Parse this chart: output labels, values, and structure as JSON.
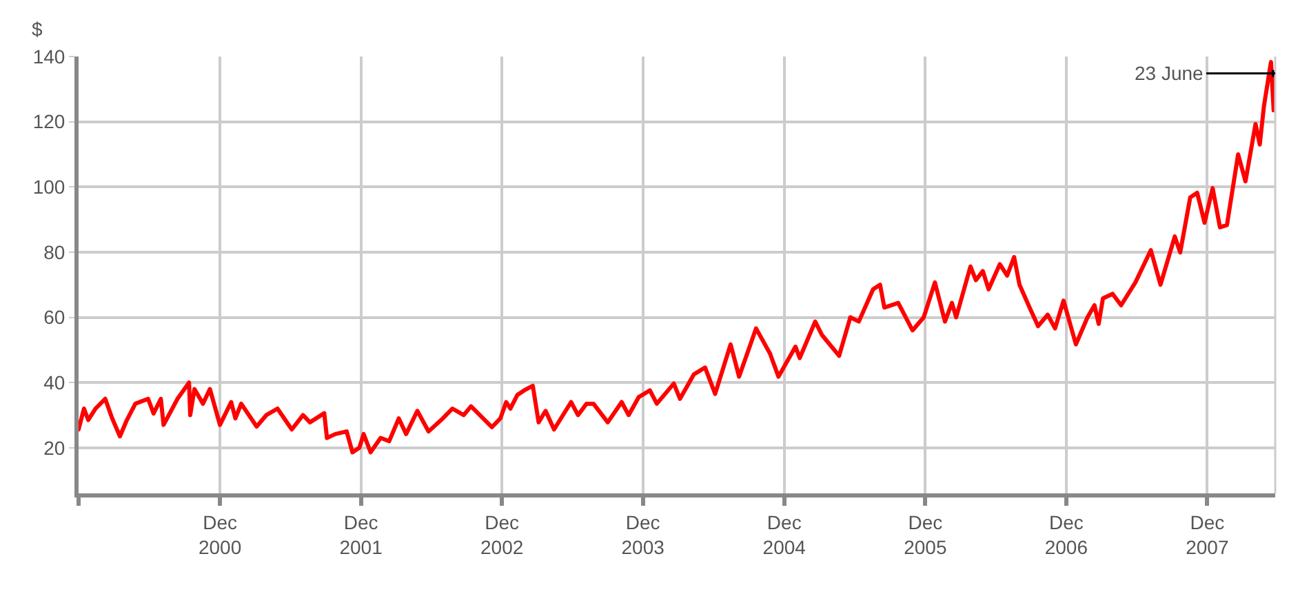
{
  "chart_data": {
    "type": "line",
    "ylabel": "$",
    "x": [
      "1999-12-03",
      "1999-12-17",
      "1999-12-28",
      "2000-01-16",
      "2000-02-10",
      "2000-02-28",
      "2000-03-19",
      "2000-04-06",
      "2000-04-28",
      "2000-05-31",
      "2000-06-14",
      "2000-07-03",
      "2000-07-10",
      "2000-08-15",
      "2000-09-14",
      "2000-09-17",
      "2000-09-28",
      "2000-10-20",
      "2000-11-07",
      "2000-12-03",
      "2001-01-01",
      "2001-01-12",
      "2001-01-27",
      "2001-03-08",
      "2001-04-02",
      "2001-05-01",
      "2001-06-07",
      "2001-07-06",
      "2001-07-24",
      "2001-08-30",
      "2001-09-06",
      "2001-09-28",
      "2001-10-27",
      "2001-11-11",
      "2001-11-29",
      "2001-12-10",
      "2001-12-28",
      "2002-01-23",
      "2002-02-14",
      "2002-03-11",
      "2002-03-30",
      "2002-04-28",
      "2002-05-27",
      "2002-07-03",
      "2002-07-28",
      "2002-08-26",
      "2002-09-14",
      "2002-11-07",
      "2002-11-29",
      "2002-12-14",
      "2002-12-25",
      "2003-01-12",
      "2003-01-30",
      "2003-02-21",
      "2003-03-08",
      "2003-03-26",
      "2003-04-17",
      "2003-05-31",
      "2003-06-18",
      "2003-07-10",
      "2003-07-28",
      "2003-09-03",
      "2003-10-09",
      "2003-10-27",
      "2003-11-22",
      "2003-12-21",
      "2004-01-08",
      "2004-02-21",
      "2004-03-08",
      "2004-04-13",
      "2004-05-12",
      "2004-06-07",
      "2004-07-17",
      "2004-08-08",
      "2004-09-21",
      "2004-10-27",
      "2004-11-18",
      "2005-01-01",
      "2005-01-12",
      "2005-02-21",
      "2005-03-11",
      "2005-04-24",
      "2005-05-23",
      "2005-06-14",
      "2005-07-21",
      "2005-08-08",
      "2005-08-19",
      "2005-09-24",
      "2005-10-31",
      "2005-11-29",
      "2005-12-28",
      "2006-01-23",
      "2006-02-10",
      "2006-02-21",
      "2006-03-30",
      "2006-04-13",
      "2006-05-01",
      "2006-05-16",
      "2006-06-14",
      "2006-07-03",
      "2006-07-21",
      "2006-08-04",
      "2006-08-30",
      "2006-09-21",
      "2006-10-16",
      "2006-11-04",
      "2006-11-26",
      "2006-12-28",
      "2007-01-27",
      "2007-02-14",
      "2007-02-25",
      "2007-03-08",
      "2007-04-02",
      "2007-04-24",
      "2007-05-31",
      "2007-07-10",
      "2007-08-04",
      "2007-09-10",
      "2007-09-24",
      "2007-10-20",
      "2007-11-07",
      "2007-11-26",
      "2007-12-17",
      "2008-01-05",
      "2008-01-23",
      "2008-02-21",
      "2008-03-11",
      "2008-04-06",
      "2008-04-17",
      "2008-04-28",
      "2008-05-16",
      "2008-05-23",
      "2008-05-27"
    ],
    "series": [
      {
        "color": "#ff0000",
        "values": [
          25.6,
          32,
          28.5,
          32,
          35,
          29,
          23.5,
          28.5,
          33.5,
          35,
          30.5,
          35,
          27,
          35,
          40,
          30,
          38,
          33.5,
          38,
          27,
          34,
          29,
          33.5,
          26.5,
          30,
          32,
          25.6,
          30,
          27.8,
          30.6,
          23,
          24.2,
          25,
          18.6,
          20,
          24.2,
          18.6,
          23,
          22,
          29,
          24.2,
          31.3,
          25,
          29,
          32,
          30,
          32.7,
          26.3,
          29,
          34,
          32,
          36.2,
          37.6,
          39,
          27.8,
          31.3,
          25.6,
          34,
          30,
          33.5,
          33.5,
          27.8,
          34,
          30,
          35.5,
          37.6,
          33.5,
          39.7,
          35,
          42.5,
          44.6,
          36.5,
          51.7,
          41.8,
          56.6,
          48.9,
          41.8,
          51,
          47.5,
          58.7,
          54.5,
          48.2,
          60,
          58.7,
          68.6,
          70,
          63,
          64.4,
          56,
          60,
          70.7,
          58.7,
          64.4,
          60,
          75.6,
          71.4,
          74.2,
          68.6,
          76.3,
          72.8,
          78.5,
          70,
          63,
          57.3,
          60.8,
          56.6,
          65.1,
          51.7,
          60,
          63.7,
          58,
          65.8,
          67.2,
          63.7,
          70.7,
          80.6,
          70,
          84.8,
          79.9,
          96.8,
          98.2,
          89,
          99.6,
          87.6,
          88.3,
          110,
          101.7,
          119.3,
          113,
          124.9,
          138.3,
          123.5,
          134.8
        ]
      }
    ],
    "xlim": [
      "1999-12-03",
      "2008-05-27"
    ],
    "xticks": [
      {
        "value": "1999-12-03",
        "label": null
      },
      {
        "value": "2000-12-03",
        "label": "Dec\n2000"
      },
      {
        "value": "2001-12-03",
        "label": "Dec\n2001"
      },
      {
        "value": "2002-12-03",
        "label": "Dec\n2002"
      },
      {
        "value": "2003-12-03",
        "label": "Dec\n2003"
      },
      {
        "value": "2004-12-03",
        "label": "Dec\n2004"
      },
      {
        "value": "2005-12-03",
        "label": "Dec\n2005"
      },
      {
        "value": "2006-12-03",
        "label": "Dec\n2006"
      },
      {
        "value": "2007-12-03",
        "label": "Dec\n2007"
      }
    ],
    "ylim": [
      6,
      140
    ],
    "yticks": [
      20,
      40,
      60,
      80,
      100,
      120,
      140
    ],
    "grid": true,
    "marker": "none",
    "line_style": "solid",
    "annotations": [
      {
        "text": "23 June",
        "x": "2008-05-27",
        "y": 134.8
      }
    ]
  }
}
